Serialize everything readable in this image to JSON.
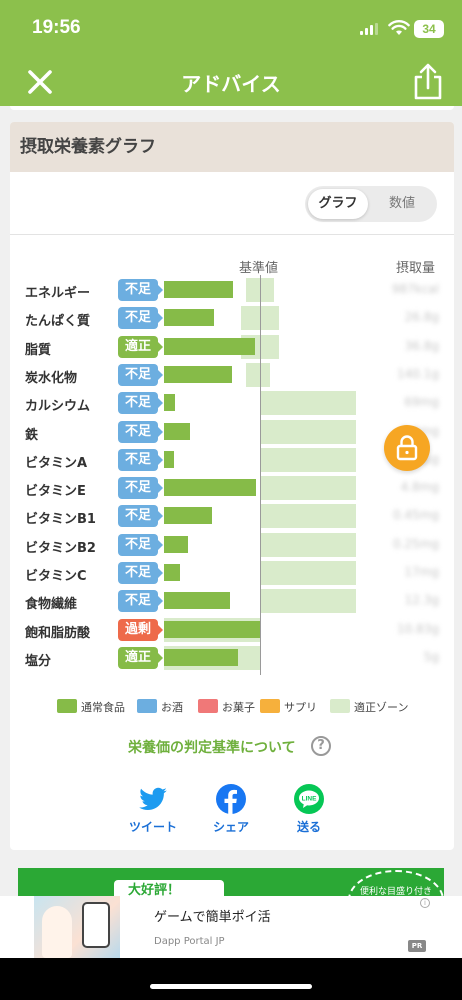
{
  "status_bar": {
    "time": "19:56",
    "battery": "34"
  },
  "nav": {
    "title": "アドバイス",
    "close_icon": "close-icon",
    "share_icon": "share-icon"
  },
  "card": {
    "title": "摂取栄養素グラフ",
    "toggle": [
      "グラフ",
      "数値"
    ],
    "toggle_selected": "グラフ",
    "header_baseline": "基準値",
    "header_intake": "摂取量"
  },
  "rows": [
    {
      "name": "エネルギー",
      "status": "不足",
      "status_color": "#6caee0",
      "intake_ratio": 0.72,
      "zone_ratio": [
        0.85,
        1.15
      ],
      "value": "987kcal"
    },
    {
      "name": "たんぱく質",
      "status": "不足",
      "status_color": "#6caee0",
      "intake_ratio": 0.52,
      "zone_ratio": [
        0.8,
        1.2
      ],
      "value": "26.8g"
    },
    {
      "name": "脂質",
      "status": "適正",
      "status_color": "#86bb48",
      "intake_ratio": 0.95,
      "zone_ratio": [
        0.8,
        1.2
      ],
      "value": "36.8g"
    },
    {
      "name": "炭水化物",
      "status": "不足",
      "status_color": "#6caee0",
      "intake_ratio": 0.71,
      "zone_ratio": [
        0.85,
        1.1
      ],
      "value": "140.1g"
    },
    {
      "name": "カルシウム",
      "status": "不足",
      "status_color": "#6caee0",
      "intake_ratio": 0.11,
      "zone_ratio": [
        1.0,
        2.0
      ],
      "value": "69mg"
    },
    {
      "name": "鉄",
      "status": "不足",
      "status_color": "#6caee0",
      "intake_ratio": 0.27,
      "zone_ratio": [
        1.0,
        2.0
      ],
      "value": "2.4mg"
    },
    {
      "name": "ビタミンA",
      "status": "不足",
      "status_color": "#6caee0",
      "intake_ratio": 0.1,
      "zone_ratio": [
        1.0,
        2.0
      ],
      "value": "66μg"
    },
    {
      "name": "ビタミンE",
      "status": "不足",
      "status_color": "#6caee0",
      "intake_ratio": 0.96,
      "zone_ratio": [
        1.0,
        2.0
      ],
      "value": "4.8mg"
    },
    {
      "name": "ビタミンB1",
      "status": "不足",
      "status_color": "#6caee0",
      "intake_ratio": 0.5,
      "zone_ratio": [
        1.0,
        2.0
      ],
      "value": "0.45mg"
    },
    {
      "name": "ビタミンB2",
      "status": "不足",
      "status_color": "#6caee0",
      "intake_ratio": 0.25,
      "zone_ratio": [
        1.0,
        2.0
      ],
      "value": "0.25mg"
    },
    {
      "name": "ビタミンC",
      "status": "不足",
      "status_color": "#6caee0",
      "intake_ratio": 0.17,
      "zone_ratio": [
        1.0,
        2.0
      ],
      "value": "17mg"
    },
    {
      "name": "食物繊維",
      "status": "不足",
      "status_color": "#6caee0",
      "intake_ratio": 0.69,
      "zone_ratio": [
        1.0,
        2.0
      ],
      "value": "12.3g"
    },
    {
      "name": "飽和脂肪酸",
      "status": "過剰",
      "status_color": "#ee6a4a",
      "intake_ratio": 1.0,
      "zone_ratio": [
        0.0,
        1.0
      ],
      "value": "10.83g"
    },
    {
      "name": "塩分",
      "status": "適正",
      "status_color": "#86bb48",
      "intake_ratio": 0.77,
      "zone_ratio": [
        0.0,
        1.0
      ],
      "value": "5g"
    }
  ],
  "legend": [
    {
      "label": "通常食品",
      "color": "#86bb48"
    },
    {
      "label": "お酒",
      "color": "#6caee0"
    },
    {
      "label": "お菓子",
      "color": "#f07878"
    },
    {
      "label": "サプリ",
      "color": "#f6b03c"
    },
    {
      "label": "適正ゾーン",
      "color": "#d9ebcb"
    }
  ],
  "criteria_link": "栄養価の判定基準について",
  "share": {
    "twitter": "ツイート",
    "facebook": "シェア",
    "line": "送る",
    "line_icon_text": "LINE"
  },
  "floating_button_icon": "lock-icon",
  "promo": {
    "tag": "大好評！",
    "badge": "便利な目盛り付き"
  },
  "ad": {
    "title": "ゲームで簡単ポイ活",
    "sub": "Dapp Portal JP",
    "badge": "PR"
  }
}
